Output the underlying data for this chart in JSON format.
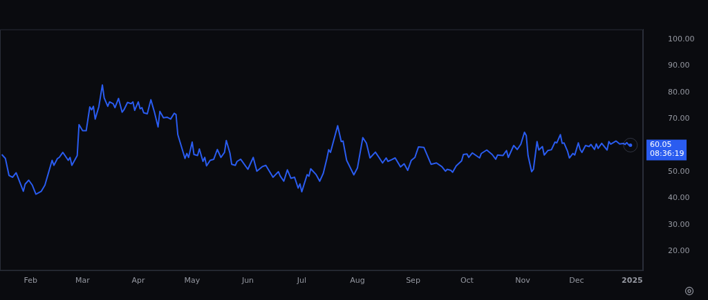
{
  "chart_data": {
    "type": "line",
    "x": [
      "2024-01-16",
      "2024-01-18",
      "2024-01-20",
      "2024-01-22",
      "2024-01-24",
      "2024-01-28",
      "2024-01-29",
      "2024-01-31",
      "2024-02-02",
      "2024-02-04",
      "2024-02-07",
      "2024-02-09",
      "2024-02-13",
      "2024-02-14",
      "2024-02-16",
      "2024-02-17",
      "2024-02-19",
      "2024-02-22",
      "2024-02-23",
      "2024-02-24",
      "2024-02-27",
      "2024-02-28",
      "2024-03-01",
      "2024-03-03",
      "2024-03-05",
      "2024-03-06",
      "2024-03-07",
      "2024-03-08",
      "2024-03-10",
      "2024-03-12",
      "2024-03-13",
      "2024-03-15",
      "2024-03-16",
      "2024-03-18",
      "2024-03-19",
      "2024-03-21",
      "2024-03-23",
      "2024-03-24",
      "2024-03-26",
      "2024-03-28",
      "2024-03-29",
      "2024-03-30",
      "2024-04-01",
      "2024-04-02",
      "2024-04-03",
      "2024-04-04",
      "2024-04-06",
      "2024-04-08",
      "2024-04-10",
      "2024-04-12",
      "2024-04-13",
      "2024-04-15",
      "2024-04-17",
      "2024-04-19",
      "2024-04-21",
      "2024-04-22",
      "2024-04-23",
      "2024-04-27",
      "2024-04-28",
      "2024-04-29",
      "2024-05-01",
      "2024-05-02",
      "2024-05-04",
      "2024-05-05",
      "2024-05-07",
      "2024-05-08",
      "2024-05-09",
      "2024-05-11",
      "2024-05-13",
      "2024-05-15",
      "2024-05-17",
      "2024-05-19",
      "2024-05-20",
      "2024-05-22",
      "2024-05-23",
      "2024-05-25",
      "2024-05-26",
      "2024-05-28",
      "2024-06-01",
      "2024-06-04",
      "2024-06-06",
      "2024-06-09",
      "2024-06-11",
      "2024-06-15",
      "2024-06-18",
      "2024-06-19",
      "2024-06-21",
      "2024-06-23",
      "2024-06-25",
      "2024-06-27",
      "2024-06-29",
      "2024-06-30",
      "2024-07-01",
      "2024-07-04",
      "2024-07-05",
      "2024-07-06",
      "2024-07-09",
      "2024-07-11",
      "2024-07-13",
      "2024-07-15",
      "2024-07-16",
      "2024-07-17",
      "2024-07-21",
      "2024-07-23",
      "2024-07-24",
      "2024-07-26",
      "2024-07-30",
      "2024-08-01",
      "2024-08-04",
      "2024-08-06",
      "2024-08-08",
      "2024-08-11",
      "2024-08-13",
      "2024-08-15",
      "2024-08-17",
      "2024-08-18",
      "2024-08-20",
      "2024-08-22",
      "2024-08-25",
      "2024-08-27",
      "2024-08-29",
      "2024-08-31",
      "2024-09-02",
      "2024-09-04",
      "2024-09-07",
      "2024-09-11",
      "2024-09-14",
      "2024-09-17",
      "2024-09-19",
      "2024-09-20",
      "2024-09-22",
      "2024-09-23",
      "2024-09-25",
      "2024-09-28",
      "2024-09-29",
      "2024-10-01",
      "2024-10-02",
      "2024-10-04",
      "2024-10-08",
      "2024-10-09",
      "2024-10-12",
      "2024-10-15",
      "2024-10-17",
      "2024-10-18",
      "2024-10-21",
      "2024-10-23",
      "2024-10-24",
      "2024-10-27",
      "2024-10-29",
      "2024-10-31",
      "2024-11-02",
      "2024-11-03",
      "2024-11-04",
      "2024-11-06",
      "2024-11-07",
      "2024-11-09",
      "2024-11-10",
      "2024-11-12",
      "2024-11-13",
      "2024-11-15",
      "2024-11-17",
      "2024-11-19",
      "2024-11-20",
      "2024-11-22",
      "2024-11-23",
      "2024-11-24",
      "2024-11-26",
      "2024-11-27",
      "2024-11-29",
      "2024-11-30",
      "2024-12-02",
      "2024-12-03",
      "2024-12-04",
      "2024-12-06",
      "2024-12-08",
      "2024-12-09",
      "2024-12-11",
      "2024-12-12",
      "2024-12-13",
      "2024-12-15",
      "2024-12-18",
      "2024-12-19",
      "2024-12-20",
      "2024-12-23",
      "2024-12-25",
      "2024-12-27",
      "2024-12-28",
      "2024-12-29",
      "2024-12-30",
      "2024-12-31"
    ],
    "series": [
      {
        "color": "#2a5cf0",
        "values": [
          56.5,
          55.0,
          48.6,
          47.9,
          49.6,
          42.6,
          45.3,
          46.8,
          44.9,
          41.5,
          42.6,
          44.9,
          54.3,
          52.4,
          55.0,
          55.4,
          57.3,
          54.3,
          55.4,
          52.4,
          56.1,
          67.8,
          65.5,
          65.5,
          74.5,
          73.4,
          74.7,
          69.9,
          74.5,
          82.8,
          77.9,
          74.7,
          76.4,
          75.7,
          74.2,
          77.7,
          72.5,
          73.4,
          76.2,
          75.7,
          76.4,
          73.2,
          76.4,
          73.8,
          74.2,
          72.3,
          71.9,
          77.2,
          72.5,
          66.9,
          72.8,
          70.4,
          70.6,
          69.9,
          72.1,
          71.6,
          64.0,
          55.0,
          56.9,
          55.4,
          61.2,
          56.5,
          56.1,
          58.6,
          53.9,
          55.4,
          52.2,
          54.3,
          54.7,
          58.4,
          55.4,
          57.3,
          61.8,
          57.1,
          52.8,
          52.4,
          53.9,
          54.7,
          50.9,
          55.4,
          50.2,
          51.9,
          52.4,
          47.9,
          50.0,
          48.4,
          46.4,
          50.7,
          47.5,
          47.9,
          43.8,
          45.4,
          42.4,
          48.9,
          48.3,
          51.1,
          48.9,
          46.4,
          49.4,
          55.0,
          58.3,
          57.3,
          67.4,
          61.4,
          61.6,
          54.3,
          48.8,
          51.4,
          62.9,
          60.8,
          55.2,
          57.4,
          55.4,
          53.3,
          55.2,
          53.9,
          54.5,
          55.2,
          51.8,
          53.0,
          50.5,
          54.3,
          55.4,
          59.4,
          59.2,
          52.8,
          53.3,
          51.9,
          50.2,
          50.9,
          50.5,
          49.8,
          52.2,
          54.1,
          56.5,
          56.7,
          55.4,
          57.1,
          55.2,
          56.9,
          58.2,
          56.5,
          54.7,
          56.3,
          56.1,
          58.0,
          55.4,
          59.9,
          58.4,
          60.4,
          64.9,
          63.7,
          56.1,
          50.0,
          50.9,
          61.4,
          58.2,
          59.5,
          56.3,
          58.0,
          58.3,
          61.2,
          60.9,
          64.0,
          60.7,
          60.9,
          57.7,
          55.2,
          56.9,
          56.3,
          60.9,
          58.4,
          57.3,
          59.9,
          59.5,
          60.3,
          58.4,
          60.5,
          58.8,
          60.7,
          58.2,
          61.4,
          60.4,
          61.6,
          60.5,
          60.7,
          60.3,
          61.0,
          60.1,
          60.05
        ]
      }
    ],
    "xlim": [
      "2024-01-15",
      "2025-01-07"
    ],
    "xticks": [
      {
        "value": "2024-02-01",
        "label": "Feb"
      },
      {
        "value": "2024-03-01",
        "label": "Mar"
      },
      {
        "value": "2024-04-01",
        "label": "Apr"
      },
      {
        "value": "2024-05-01",
        "label": "May"
      },
      {
        "value": "2024-06-01",
        "label": "Jun"
      },
      {
        "value": "2024-07-01",
        "label": "Jul"
      },
      {
        "value": "2024-08-01",
        "label": "Aug"
      },
      {
        "value": "2024-09-01",
        "label": "Sep"
      },
      {
        "value": "2024-10-01",
        "label": "Oct"
      },
      {
        "value": "2024-11-01",
        "label": "Nov"
      },
      {
        "value": "2024-12-01",
        "label": "Dec"
      },
      {
        "value": "2025-01-01",
        "label": "2025"
      }
    ],
    "ylim": [
      12.6,
      103.8
    ],
    "yticks": [
      {
        "value": 20,
        "label": "20.00"
      },
      {
        "value": 30,
        "label": "30.00"
      },
      {
        "value": 40,
        "label": "40.00"
      },
      {
        "value": 50,
        "label": "50.00"
      },
      {
        "value": 70,
        "label": "70.00"
      },
      {
        "value": 80,
        "label": "80.00"
      },
      {
        "value": 90,
        "label": "90.00"
      },
      {
        "value": 100,
        "label": "100.00"
      }
    ],
    "annotations": [
      {
        "text": "60.05",
        "x": "2024-12-31",
        "y": 60.05
      },
      "08:36:19"
    ],
    "grid": false,
    "legend": false,
    "marker": "none",
    "line_style": "solid"
  }
}
